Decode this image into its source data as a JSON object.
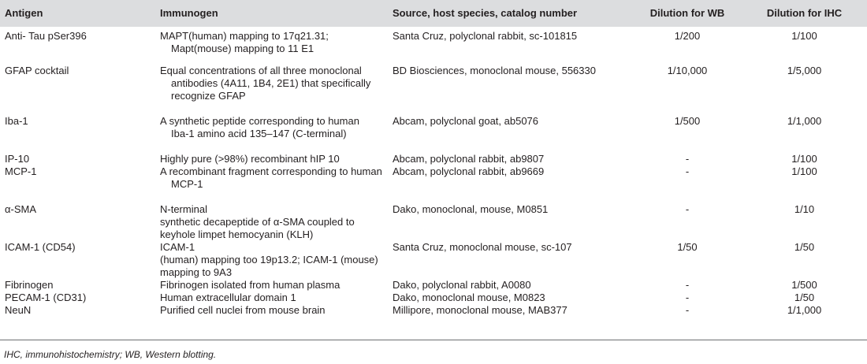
{
  "table": {
    "headers": [
      "Antigen",
      "Immunogen",
      "Source, host species, catalog number",
      "Dilution for WB",
      "Dilution for IHC"
    ],
    "rows": [
      {
        "antigen": "Anti- Tau pSer396",
        "immunogen": [
          "MAPT(human) mapping to 17q21.31;",
          "Mapt(mouse) mapping to 11 E1"
        ],
        "source": "Santa Cruz, polyclonal rabbit, sc-101815",
        "wb": "1/200",
        "ihc": "1/100"
      },
      {
        "antigen": "GFAP cocktail",
        "immunogen": [
          "Equal concentrations of all three monoclonal",
          "antibodies (4A11, 1B4, 2E1) that specifically",
          "recognize GFAP"
        ],
        "source": "BD Biosciences, monoclonal mouse, 556330",
        "wb": "1/10,000",
        "ihc": "1/5,000"
      },
      {
        "antigen": "Iba-1",
        "immunogen": [
          "A synthetic peptide corresponding to human",
          "Iba-1 amino acid 135–147 (C-terminal)"
        ],
        "source": "Abcam, polyclonal goat, ab5076",
        "wb": "1/500",
        "ihc": "1/1,000"
      },
      {
        "antigen": "IP-10",
        "immunogen": [
          "Highly pure (>98%) recombinant hIP 10"
        ],
        "source": "Abcam, polyclonal rabbit, ab9807",
        "wb": "-",
        "ihc": "1/100"
      },
      {
        "antigen": "MCP-1",
        "immunogen": [
          "A recombinant fragment corresponding to human",
          "MCP-1"
        ],
        "source": "Abcam, polyclonal rabbit, ab9669",
        "wb": "-",
        "ihc": "1/100"
      },
      {
        "antigen": "α-SMA",
        "immunogen": [
          "N-terminal",
          "synthetic decapeptide of α-SMA coupled to",
          "keyhole limpet hemocyanin (KLH)"
        ],
        "source": "Dako, monoclonal, mouse, M0851",
        "wb": "-",
        "ihc": "1/10"
      },
      {
        "antigen": "ICAM-1 (CD54)",
        "immunogen": [
          "ICAM-1",
          "(human) mapping too 19p13.2; ICAM-1 (mouse)",
          "mapping to 9A3"
        ],
        "source": "Santa Cruz, monoclonal mouse, sc-107",
        "wb": "1/50",
        "ihc": "1/50"
      },
      {
        "antigen": "Fibrinogen",
        "immunogen": [
          "Fibrinogen isolated from human plasma"
        ],
        "source": "Dako, polyclonal rabbit, A0080",
        "wb": "-",
        "ihc": "1/500"
      },
      {
        "antigen": "PECAM-1 (CD31)",
        "immunogen": [
          "Human extracellular domain 1"
        ],
        "source": "Dako, monoclonal mouse, M0823",
        "wb": "-",
        "ihc": "1/50"
      },
      {
        "antigen": "NeuN",
        "immunogen": [
          "Purified cell nuclei from mouse brain"
        ],
        "source": "Millipore, monoclonal mouse, MAB377",
        "wb": "-",
        "ihc": "1/1,000"
      }
    ]
  },
  "footnote": "IHC, immunohistochemistry; WB, Western blotting."
}
